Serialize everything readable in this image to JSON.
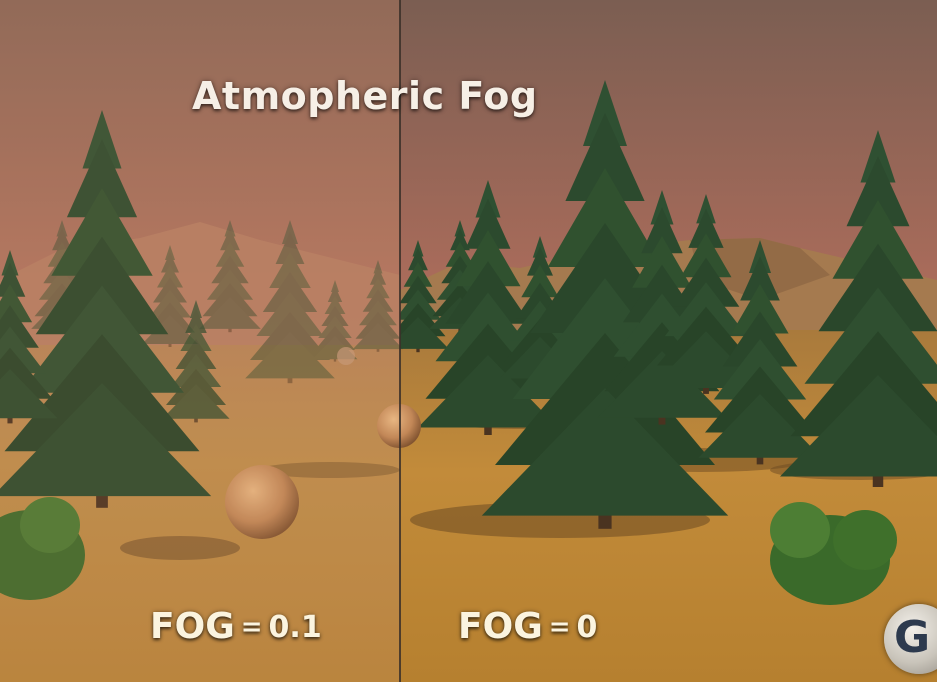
{
  "scene": {
    "title": "Atmopheric Fog",
    "left_panel": {
      "key": "FOG",
      "equals": "=",
      "value": "0.1"
    },
    "right_panel": {
      "key": "FOG",
      "equals": "=",
      "value": "0"
    },
    "logo_letter": "G"
  },
  "colors": {
    "sky_top": "#8a6a5a",
    "sky_horizon": "#e8876a",
    "ground": "#c08a3a",
    "tree_dark": "#2c4a2e",
    "fog_tint": "#c98b63"
  },
  "objects": {
    "trees": "tree-icon",
    "spheres": "sphere",
    "bushes": "bush-icon",
    "mountains": "mountain-range"
  }
}
